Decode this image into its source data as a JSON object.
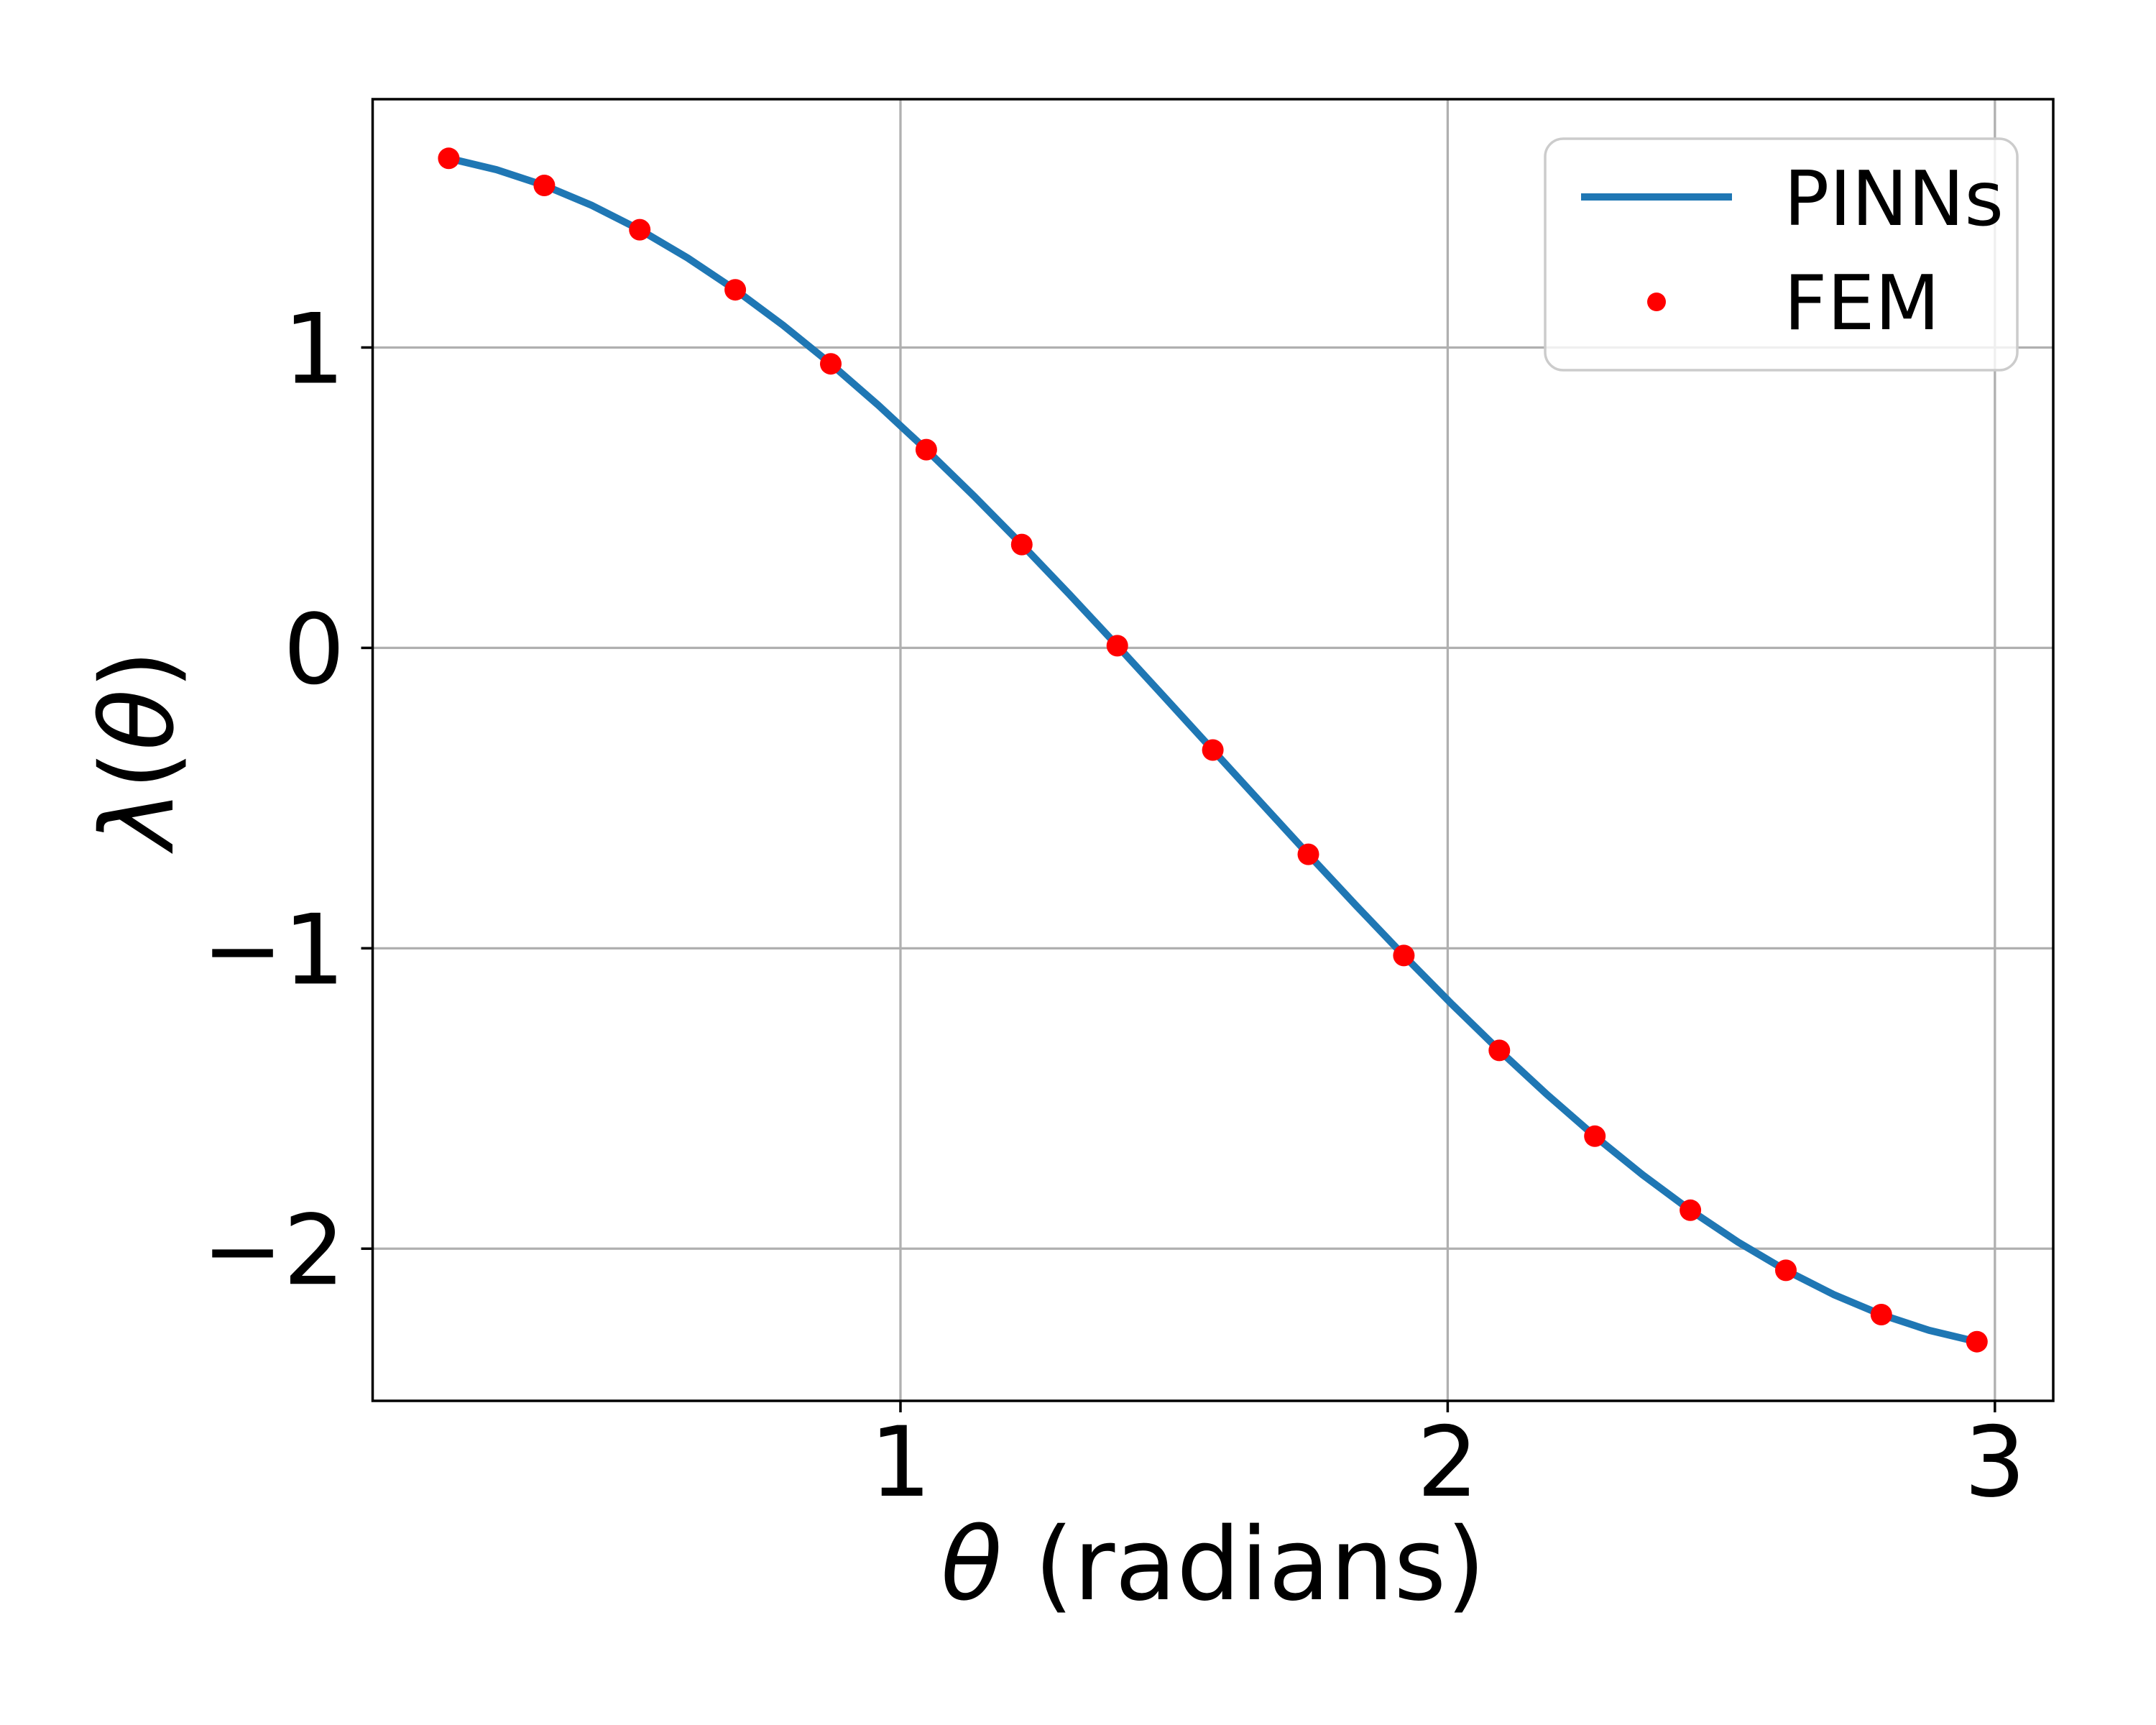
{
  "figure": {
    "background": "#ffffff",
    "xlabel": {
      "theta": "θ",
      "rest": " (radians)"
    },
    "ylabel": {
      "lambda": "λ",
      "open": "(",
      "theta": "θ",
      "close": ")"
    },
    "legend": {
      "position": "upper right",
      "entries": [
        {
          "label": "PINNs",
          "type": "line",
          "color": "#1f77b4"
        },
        {
          "label": "FEM",
          "type": "marker",
          "color": "#ff0000"
        }
      ]
    }
  },
  "chart_data": {
    "type": "line",
    "title": "",
    "xlabel": "θ (radians)",
    "ylabel": "λ(θ)",
    "xlim": [
      0.0354,
      3.1066
    ],
    "ylim": [
      -2.5066,
      1.8266
    ],
    "xticks": [
      1,
      2,
      3
    ],
    "xtick_labels": [
      "1",
      "2",
      "3"
    ],
    "yticks": [
      1,
      0,
      -1,
      -2
    ],
    "ytick_labels": [
      "1",
      "0",
      "−1",
      "−2"
    ],
    "grid": true,
    "legend_position": "upper right",
    "colors": {
      "grid": "#b0b0b0",
      "spine": "#000000",
      "background": "#ffffff"
    },
    "series": [
      {
        "name": "PINNs",
        "type": "line",
        "color": "#1f77b4",
        "x": [
          0.1745,
          0.2618,
          0.3491,
          0.4363,
          0.5236,
          0.6109,
          0.6981,
          0.7854,
          0.8727,
          0.9599,
          1.0472,
          1.1345,
          1.2217,
          1.309,
          1.3963,
          1.4835,
          1.5708,
          1.6581,
          1.7453,
          1.8326,
          1.9199,
          2.0071,
          2.0944,
          2.1817,
          2.2689,
          2.3562,
          2.4435,
          2.5307,
          2.618,
          2.7053,
          2.7925,
          2.8798,
          2.9671
        ],
        "y": [
          1.6296,
          1.5919,
          1.5394,
          1.4726,
          1.3921,
          1.2983,
          1.1921,
          1.0742,
          0.9456,
          0.8072,
          0.66,
          0.5052,
          0.344,
          0.1776,
          0.0073,
          -0.1657,
          -0.34,
          -0.5143,
          -0.6873,
          -0.8576,
          -1.024,
          -1.1852,
          -1.34,
          -1.4872,
          -1.6256,
          -1.7542,
          -1.8721,
          -1.9783,
          -2.0721,
          -2.1526,
          -2.2194,
          -2.2719,
          -2.3096
        ]
      },
      {
        "name": "FEM",
        "type": "scatter",
        "color": "#ff0000",
        "x": [
          0.1745,
          0.3491,
          0.5236,
          0.6981,
          0.8727,
          1.0472,
          1.2217,
          1.3963,
          1.5708,
          1.7453,
          1.9199,
          2.0944,
          2.2689,
          2.4435,
          2.618,
          2.7925,
          2.9671
        ],
        "y": [
          1.6296,
          1.5394,
          1.3921,
          1.1921,
          0.9456,
          0.66,
          0.344,
          0.0073,
          -0.34,
          -0.6873,
          -1.024,
          -1.34,
          -1.6256,
          -1.8721,
          -2.0721,
          -2.2194,
          -2.3096
        ]
      }
    ]
  }
}
